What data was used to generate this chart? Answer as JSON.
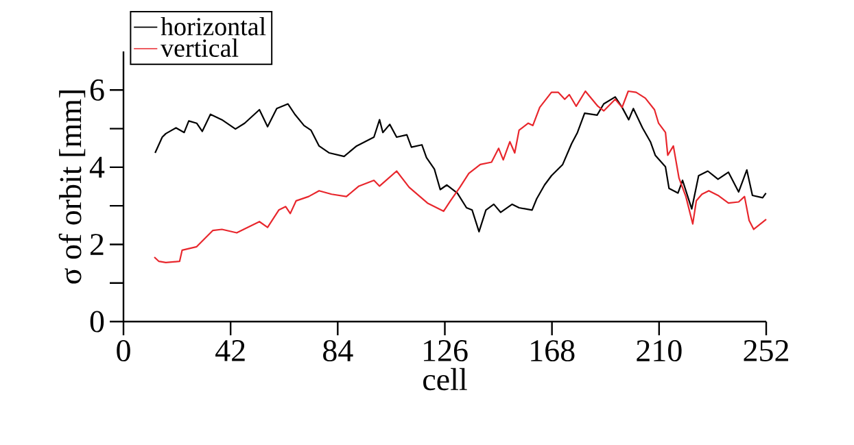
{
  "chart_data": {
    "type": "line",
    "xlabel": "cell",
    "ylabel": "σ of orbit [mm]",
    "xlim": [
      0,
      252
    ],
    "xticks": [
      0,
      42,
      84,
      126,
      168,
      210,
      252
    ],
    "ylim": [
      0,
      7
    ],
    "yticks": [
      0,
      2,
      4,
      6
    ],
    "legend": "top left",
    "marker": "none",
    "line_style": "solid",
    "grid": false,
    "series": [
      {
        "name": "horizontal",
        "color": "#000000",
        "x": [
          12.4,
          15.2,
          16.6,
          20.6,
          23.8,
          25.6,
          28.7,
          30.9,
          34.1,
          38.6,
          43.9,
          47.5,
          53.3,
          56.5,
          60.1,
          64.5,
          67.2,
          70.8,
          73.5,
          76.7,
          80.7,
          86.5,
          91.4,
          98.2,
          100.4,
          101.7,
          104.4,
          107.1,
          111.1,
          112.9,
          117.0,
          118.8,
          121.9,
          124.2,
          126.8,
          130.9,
          134.5,
          136.7,
          139.4,
          142.1,
          145.2,
          147.9,
          152.4,
          155.1,
          160.2,
          162.0,
          165.1,
          167.8,
          172.2,
          175.7,
          178.0,
          180.8,
          185.7,
          188.3,
          192.8,
          195.5,
          198.1,
          199.9,
          203.5,
          206.6,
          208.5,
          212.5,
          213.9,
          217.4,
          219.2,
          222.8,
          225.5,
          229.1,
          233.1,
          237.2,
          241.2,
          244.4,
          246.6,
          250.6,
          251.9
        ],
        "values": [
          4.37,
          4.78,
          4.87,
          5.02,
          4.9,
          5.2,
          5.14,
          4.93,
          5.37,
          5.23,
          4.99,
          5.14,
          5.49,
          5.05,
          5.52,
          5.64,
          5.37,
          5.08,
          4.96,
          4.55,
          4.37,
          4.28,
          4.55,
          4.78,
          5.23,
          4.9,
          5.11,
          4.78,
          4.84,
          4.52,
          4.58,
          4.25,
          3.95,
          3.42,
          3.54,
          3.33,
          2.95,
          2.89,
          2.33,
          2.89,
          3.04,
          2.83,
          3.04,
          2.95,
          2.89,
          3.18,
          3.54,
          3.78,
          4.07,
          4.61,
          4.9,
          5.4,
          5.35,
          5.64,
          5.82,
          5.55,
          5.23,
          5.52,
          5.02,
          4.66,
          4.31,
          4.01,
          3.45,
          3.33,
          3.66,
          2.92,
          3.78,
          3.9,
          3.69,
          3.87,
          3.36,
          3.93,
          3.27,
          3.21,
          3.33
        ]
      },
      {
        "name": "vertical",
        "color": "#e8262c",
        "x": [
          12.1,
          13.9,
          16.6,
          22.0,
          23.0,
          28.7,
          35.0,
          38.6,
          44.4,
          53.3,
          56.5,
          60.9,
          63.6,
          65.4,
          67.7,
          72.6,
          76.7,
          81.6,
          87.4,
          92.3,
          98.2,
          100.4,
          107.1,
          112.0,
          119.2,
          125.5,
          128.2,
          131.9,
          135.4,
          139.9,
          144.3,
          147.1,
          148.9,
          151.5,
          153.4,
          155.1,
          158.7,
          160.5,
          163.2,
          167.8,
          170.5,
          173.0,
          174.8,
          177.5,
          181.1,
          186.0,
          188.3,
          192.8,
          195.5,
          197.9,
          201.0,
          204.6,
          208.2,
          209.8,
          212.5,
          213.4,
          215.6,
          217.8,
          220.5,
          223.2,
          224.6,
          226.8,
          229.5,
          233.1,
          237.2,
          241.2,
          243.5,
          245.3,
          247.1,
          252.0
        ],
        "values": [
          1.67,
          1.56,
          1.53,
          1.56,
          1.85,
          1.94,
          2.36,
          2.39,
          2.3,
          2.59,
          2.44,
          2.89,
          2.98,
          2.8,
          3.13,
          3.24,
          3.39,
          3.3,
          3.24,
          3.51,
          3.66,
          3.51,
          3.9,
          3.48,
          3.07,
          2.86,
          3.13,
          3.48,
          3.84,
          4.07,
          4.13,
          4.49,
          4.19,
          4.66,
          4.37,
          4.96,
          5.14,
          5.08,
          5.55,
          5.94,
          5.94,
          5.76,
          5.88,
          5.58,
          5.97,
          5.58,
          5.46,
          5.76,
          5.55,
          5.97,
          5.94,
          5.79,
          5.49,
          5.14,
          4.9,
          4.31,
          4.55,
          3.72,
          3.24,
          2.53,
          3.13,
          3.3,
          3.39,
          3.27,
          3.07,
          3.1,
          3.24,
          2.62,
          2.39,
          2.65
        ]
      }
    ]
  }
}
